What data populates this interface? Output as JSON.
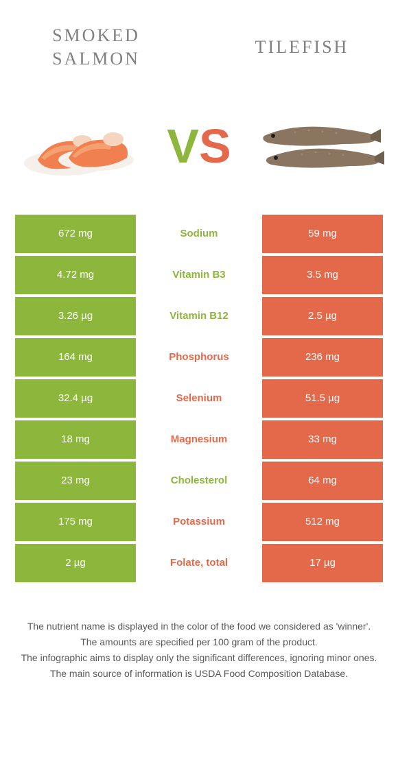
{
  "header": {
    "left_title": "SMOKED SALMON",
    "right_title": "TILEFISH"
  },
  "vs": {
    "v": "V",
    "s": "S"
  },
  "colors": {
    "left_bg": "#8cb63c",
    "right_bg": "#e4694a",
    "left_win_text": "#8cb63c",
    "right_win_text": "#e4694a",
    "title_text": "#808080",
    "cell_text": "#ffffff",
    "footnote_text": "#585858",
    "background": "#ffffff"
  },
  "table": {
    "rows": [
      {
        "left": "672 mg",
        "label": "Sodium",
        "right": "59 mg",
        "winner": "left"
      },
      {
        "left": "4.72 mg",
        "label": "Vitamin B3",
        "right": "3.5 mg",
        "winner": "left"
      },
      {
        "left": "3.26 µg",
        "label": "Vitamin B12",
        "right": "2.5 µg",
        "winner": "left"
      },
      {
        "left": "164 mg",
        "label": "Phosphorus",
        "right": "236 mg",
        "winner": "right"
      },
      {
        "left": "32.4 µg",
        "label": "Selenium",
        "right": "51.5 µg",
        "winner": "right"
      },
      {
        "left": "18 mg",
        "label": "Magnesium",
        "right": "33 mg",
        "winner": "right"
      },
      {
        "left": "23 mg",
        "label": "Cholesterol",
        "right": "64 mg",
        "winner": "left"
      },
      {
        "left": "175 mg",
        "label": "Potassium",
        "right": "512 mg",
        "winner": "right"
      },
      {
        "left": "2 µg",
        "label": "Folate, total",
        "right": "17 µg",
        "winner": "right"
      }
    ]
  },
  "footnotes": [
    "The nutrient name is displayed in the color of the food we considered as 'winner'.",
    "The amounts are specified per 100 gram of the product.",
    "The infographic aims to display only the significant differences, ignoring minor ones.",
    "The main source of information is USDA Food Composition Database."
  ]
}
